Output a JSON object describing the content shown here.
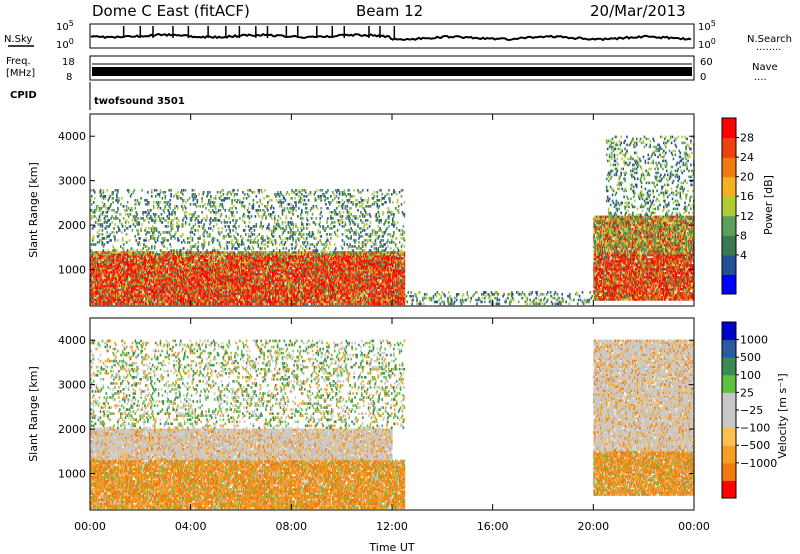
{
  "header": {
    "station": "Dome C East (fitACF)",
    "beam": "Beam 12",
    "date": "20/Mar/2013"
  },
  "aux_panels": {
    "nsky_label": "N.Sky",
    "nsearch_label": "N.Search",
    "nsearch_marker": "........",
    "noise_ticks": [
      "10^5",
      "10^0"
    ],
    "freq_label_top": "Freq.",
    "freq_label_bottom": "[MHz]",
    "freq_ticks": [
      "18",
      "8"
    ],
    "nave_label": "Nave",
    "nave_marker": "....",
    "nave_ticks": [
      "60",
      "0"
    ],
    "cpid_label": "CPID",
    "cpid_value": "twofsound 3501"
  },
  "chart_data": [
    {
      "type": "heatmap",
      "name": "power",
      "ylabel": "Slant Range [km]",
      "xlabel": "",
      "x_ticks": [
        "00:00",
        "04:00",
        "08:00",
        "12:00",
        "16:00",
        "20:00",
        "00:00"
      ],
      "x_range_hours": [
        0,
        24
      ],
      "y_ticks": [
        1000,
        2000,
        3000,
        4000
      ],
      "ylim": [
        180,
        4500
      ],
      "colorbar": {
        "label": "Power [dB]",
        "ticks": [
          "28",
          "24",
          "20",
          "16",
          "12",
          "8",
          "4"
        ],
        "colors": [
          "#0000ff",
          "#264f9a",
          "#3a7a52",
          "#5aa05a",
          "#b0cc30",
          "#f5b020",
          "#f07a10",
          "#f04010",
          "#ff0000"
        ]
      },
      "echo_regions": [
        {
          "t_start": 0.0,
          "t_end": 12.5,
          "range_start": 200,
          "range_end": 1400,
          "level": "high"
        },
        {
          "t_start": 0.0,
          "t_end": 12.5,
          "range_start": 1400,
          "range_end": 2800,
          "level": "low"
        },
        {
          "t_start": 20.0,
          "t_end": 24.0,
          "range_start": 300,
          "range_end": 2200,
          "level": "high"
        },
        {
          "t_start": 20.5,
          "t_end": 24.0,
          "range_start": 2200,
          "range_end": 4000,
          "level": "low"
        },
        {
          "t_start": 12.5,
          "t_end": 20.0,
          "range_start": 200,
          "range_end": 500,
          "level": "low"
        }
      ]
    },
    {
      "type": "heatmap",
      "name": "velocity",
      "ylabel": "Slant Range [km]",
      "xlabel": "Time UT",
      "x_ticks": [
        "00:00",
        "04:00",
        "08:00",
        "12:00",
        "16:00",
        "20:00",
        "00:00"
      ],
      "x_range_hours": [
        0,
        24
      ],
      "y_ticks": [
        1000,
        2000,
        3000,
        4000
      ],
      "ylim": [
        180,
        4500
      ],
      "colorbar": {
        "label": "Velocity [m s⁻¹]",
        "ticks": [
          "1000",
          "500",
          "100",
          "25",
          "−25",
          "−100",
          "−500",
          "−1000"
        ],
        "colors": [
          "#ff0000",
          "#f07a10",
          "#f5a020",
          "#fcc050",
          "#c8c8c8",
          "#c8c8c8",
          "#5fc040",
          "#3a8a52",
          "#2a5aa0",
          "#0000cc"
        ]
      },
      "echo_regions": [
        {
          "t_start": 0.0,
          "t_end": 12.5,
          "range_start": 200,
          "range_end": 1300,
          "level": "orange"
        },
        {
          "t_start": 0.0,
          "t_end": 12.0,
          "range_start": 1300,
          "range_end": 2000,
          "level": "grey"
        },
        {
          "t_start": 0.0,
          "t_end": 12.5,
          "range_start": 2000,
          "range_end": 4000,
          "level": "sparse"
        },
        {
          "t_start": 20.0,
          "t_end": 24.0,
          "range_start": 500,
          "range_end": 1500,
          "level": "orange"
        },
        {
          "t_start": 20.0,
          "t_end": 24.0,
          "range_start": 1500,
          "range_end": 4000,
          "level": "grey"
        }
      ]
    }
  ]
}
